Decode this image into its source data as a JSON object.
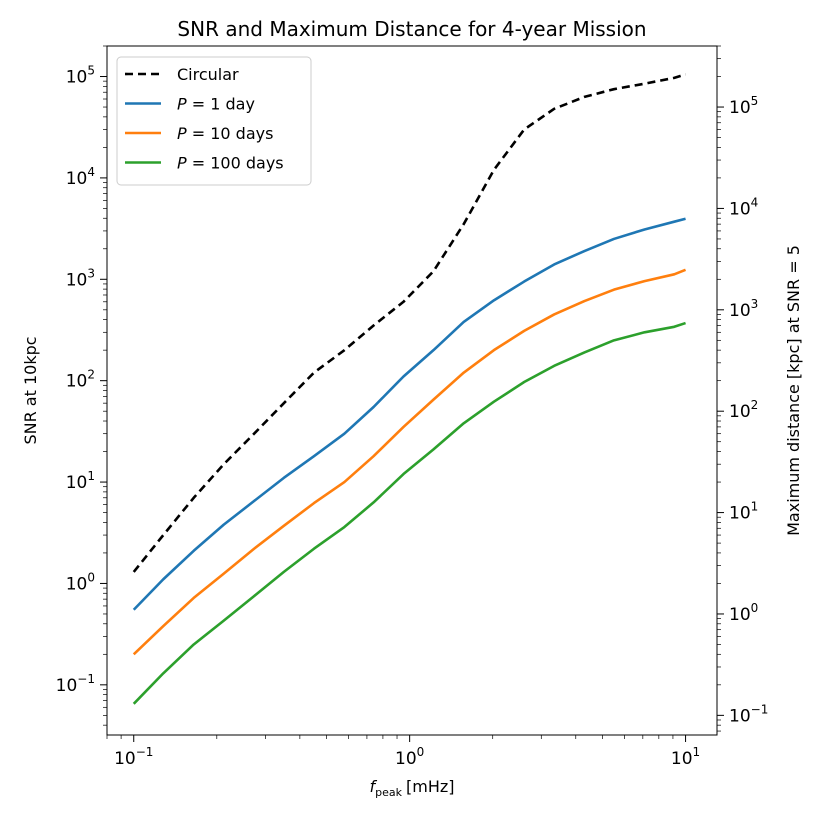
{
  "chart_data": {
    "type": "line",
    "title": "SNR and Maximum Distance for 4-year Mission",
    "xlabel_main": "f",
    "xlabel_sub": "peak",
    "xlabel_unit": "[mHz]",
    "ylabel": "SNR at 10kpc",
    "ylabel_right": "Maximum distance [kpc] at SNR = 5",
    "xscale": "log",
    "yscale": "log",
    "xlim": [
      0.08,
      13
    ],
    "ylim": [
      0.032,
      200000
    ],
    "ylim_right": [
      0.064,
      400000
    ],
    "x_ticks": [
      {
        "value": 0.1,
        "base": "10",
        "exp": "−1"
      },
      {
        "value": 1,
        "base": "10",
        "exp": "0"
      },
      {
        "value": 10,
        "base": "10",
        "exp": "1"
      }
    ],
    "y_ticks": [
      {
        "value": 0.1,
        "base": "10",
        "exp": "−1"
      },
      {
        "value": 1,
        "base": "10",
        "exp": "0"
      },
      {
        "value": 10,
        "base": "10",
        "exp": "1"
      },
      {
        "value": 100,
        "base": "10",
        "exp": "2"
      },
      {
        "value": 1000,
        "base": "10",
        "exp": "3"
      },
      {
        "value": 10000,
        "base": "10",
        "exp": "4"
      },
      {
        "value": 100000,
        "base": "10",
        "exp": "5"
      }
    ],
    "y_ticks_right": [
      {
        "value": 0.1,
        "base": "10",
        "exp": "−1"
      },
      {
        "value": 1,
        "base": "10",
        "exp": "0"
      },
      {
        "value": 10,
        "base": "10",
        "exp": "1"
      },
      {
        "value": 100,
        "base": "10",
        "exp": "2"
      },
      {
        "value": 1000,
        "base": "10",
        "exp": "3"
      },
      {
        "value": 10000,
        "base": "10",
        "exp": "4"
      },
      {
        "value": 100000,
        "base": "10",
        "exp": "5"
      }
    ],
    "x": [
      0.1,
      0.128,
      0.165,
      0.212,
      0.273,
      0.35,
      0.45,
      0.58,
      0.74,
      0.95,
      1.22,
      1.57,
      2.02,
      2.6,
      3.34,
      4.3,
      5.5,
      7.1,
      9.1,
      10
    ],
    "series": [
      {
        "name": "Circular",
        "color": "#000000",
        "dashed": true,
        "values": [
          1.3,
          3.0,
          7.0,
          15,
          30,
          60,
          120,
          200,
          350,
          600,
          1200,
          3500,
          12000,
          30000,
          48000,
          63000,
          75000,
          85000,
          97000,
          105000
        ]
      },
      {
        "name": "P = 1 day",
        "label_var": "P",
        "label_rest": " = 1 day",
        "color": "#1f77b4",
        "dashed": false,
        "values": [
          0.55,
          1.1,
          2.1,
          3.8,
          6.5,
          11,
          18,
          30,
          55,
          110,
          200,
          380,
          620,
          950,
          1400,
          1900,
          2500,
          3100,
          3700,
          3950
        ]
      },
      {
        "name": "P = 10 days",
        "label_var": "P",
        "label_rest": " = 10 days",
        "color": "#ff7f0e",
        "dashed": false,
        "values": [
          0.2,
          0.38,
          0.72,
          1.25,
          2.2,
          3.7,
          6.2,
          10,
          18,
          35,
          65,
          120,
          200,
          310,
          450,
          610,
          790,
          960,
          1120,
          1240
        ]
      },
      {
        "name": "P = 100 days",
        "label_var": "P",
        "label_rest": " = 100 days",
        "color": "#2ca02c",
        "dashed": false,
        "values": [
          0.065,
          0.13,
          0.25,
          0.43,
          0.75,
          1.3,
          2.2,
          3.6,
          6.3,
          12,
          21,
          38,
          62,
          97,
          140,
          190,
          250,
          300,
          340,
          370
        ]
      }
    ],
    "legend_position": "upper-left"
  }
}
